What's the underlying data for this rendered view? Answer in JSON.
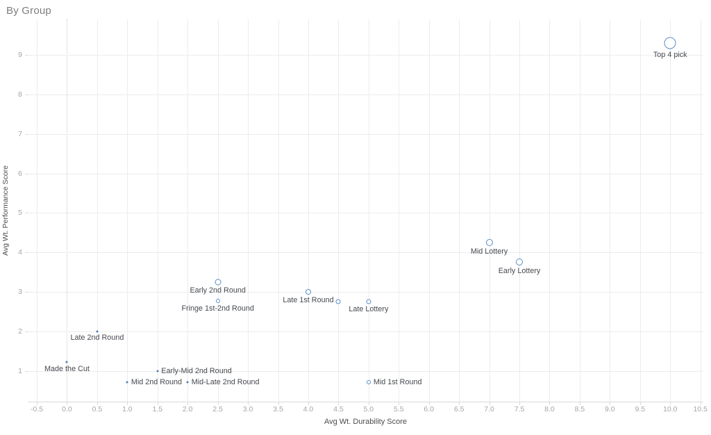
{
  "title": "By Group",
  "colors": {
    "accent_stroke": "#5a8cc8",
    "accent_fill": "#4f7db8",
    "grid": "#ececec",
    "zero_line": "#c9c9c9",
    "axis_line": "#d9d9d9",
    "tick_label": "#a5a5a5",
    "point_label": "#45494e",
    "axis_title": "#4c4c4c",
    "chart_title": "#7d7d7d",
    "background": "#ffffff"
  },
  "chart_data": {
    "type": "scatter",
    "title": "By Group",
    "xlabel": "Avg Wt. Durability Score",
    "ylabel": "Avg Wt. Performance Score",
    "xlim": [
      -0.65,
      10.55
    ],
    "ylim": [
      0.22,
      9.9
    ],
    "x_ticks": [
      -0.5,
      0.0,
      0.5,
      1.0,
      1.5,
      2.0,
      2.5,
      3.0,
      3.5,
      4.0,
      4.5,
      5.0,
      5.5,
      6.0,
      6.5,
      7.0,
      7.5,
      8.0,
      8.5,
      9.0,
      9.5,
      10.0,
      10.5
    ],
    "y_ticks": [
      1,
      2,
      3,
      4,
      5,
      6,
      7,
      8,
      9
    ],
    "grid": "on",
    "zero_line_x": 0.0,
    "points": [
      {
        "label": "Top 4 pick",
        "x": 10.0,
        "y": 9.3,
        "size": 17,
        "style": "open",
        "label_pos": "below"
      },
      {
        "label": "Mid Lottery",
        "x": 7.0,
        "y": 4.25,
        "size": 10,
        "style": "open",
        "label_pos": "below"
      },
      {
        "label": "Early Lottery",
        "x": 7.5,
        "y": 3.75,
        "size": 10,
        "style": "open",
        "label_pos": "below"
      },
      {
        "label": "Early 2nd Round",
        "x": 2.5,
        "y": 3.25,
        "size": 9,
        "style": "open",
        "label_pos": "below"
      },
      {
        "label": "Late 1st Round",
        "x": 4.0,
        "y": 3.0,
        "size": 8,
        "style": "open",
        "label_pos": "below"
      },
      {
        "label": "",
        "x": 4.5,
        "y": 2.75,
        "size": 7,
        "style": "open",
        "label_pos": "none"
      },
      {
        "label": "Fringe 1st-2nd Round",
        "x": 2.5,
        "y": 2.78,
        "size": 6,
        "style": "open",
        "label_pos": "below"
      },
      {
        "label": "Late Lottery",
        "x": 5.0,
        "y": 2.76,
        "size": 7,
        "style": "open",
        "label_pos": "below"
      },
      {
        "label": "Late 2nd Round",
        "x": 0.5,
        "y": 2.0,
        "size": 3,
        "style": "filled",
        "label_pos": "below"
      },
      {
        "label": "Made the Cut",
        "x": 0.0,
        "y": 1.22,
        "size": 3,
        "style": "filled",
        "label_pos": "below"
      },
      {
        "label": "Early-Mid 2nd Round",
        "x": 1.5,
        "y": 1.0,
        "size": 3,
        "style": "filled",
        "label_pos": "right"
      },
      {
        "label": "Mid 2nd Round",
        "x": 1.0,
        "y": 0.72,
        "size": 3,
        "style": "filled",
        "label_pos": "right"
      },
      {
        "label": "Mid-Late 2nd Round",
        "x": 2.0,
        "y": 0.72,
        "size": 3,
        "style": "filled",
        "label_pos": "right"
      },
      {
        "label": "Mid 1st Round",
        "x": 5.0,
        "y": 0.72,
        "size": 6,
        "style": "open",
        "label_pos": "right"
      }
    ]
  }
}
